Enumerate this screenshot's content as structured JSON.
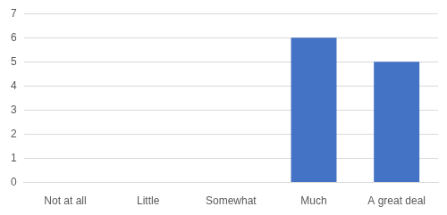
{
  "chart_data": {
    "type": "bar",
    "categories": [
      "Not at all",
      "Little",
      "Somewhat",
      "Much",
      "A great deal"
    ],
    "values": [
      0,
      0,
      0,
      6,
      5
    ],
    "color": "#4472c4",
    "ylim": [
      0,
      7
    ],
    "yticks": [
      0,
      1,
      2,
      3,
      4,
      5,
      6,
      7
    ],
    "grid": true
  }
}
